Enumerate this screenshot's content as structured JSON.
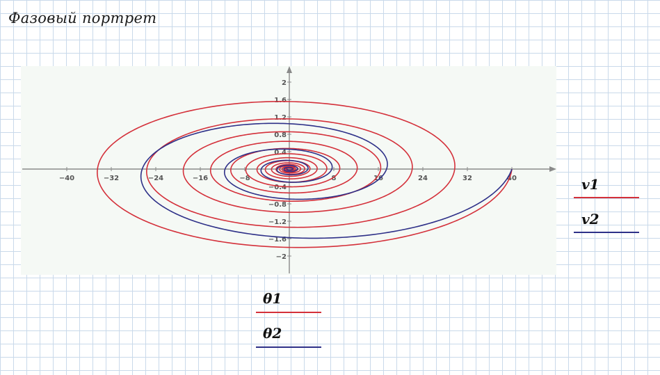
{
  "title": "Фазовый портрет",
  "chart_data": {
    "type": "line",
    "title": "Фазовый портрет",
    "xlabel": "",
    "ylabel": "",
    "xlim": [
      -48,
      47
    ],
    "ylim": [
      -2.4,
      2.4
    ],
    "x_ticks": [
      -40,
      -32,
      -24,
      -16,
      -8,
      0,
      8,
      16,
      24,
      32,
      40
    ],
    "x_tick_labels": [
      "−40",
      "−32",
      "−24",
      "−16",
      "−8",
      "",
      "8",
      "16",
      "24",
      "32",
      "40"
    ],
    "y_ticks": [
      2,
      1.6,
      1.2,
      0.8,
      0.4,
      -0.4,
      -0.8,
      -1.2,
      -1.6,
      -2
    ],
    "y_tick_labels": [
      "2",
      "1.6",
      "1.2",
      "0.8",
      "0.4",
      "−0.4",
      "−0.8",
      "−1.2",
      "−1.6",
      "−2"
    ],
    "grid": false,
    "series": [
      {
        "name": "v1",
        "x_label": "θ1",
        "color": "#d4303a",
        "description_values": {
          "start": [
            40,
            0
          ],
          "decay_per_turn": 0.862,
          "ellipse_ratio_y_over_x": 0.0485
        },
        "x": [
          40,
          0,
          -34.5,
          0,
          29.7,
          0,
          -25.6,
          0,
          22.1,
          0,
          -19.0,
          0,
          16.4,
          0,
          -14.1,
          0,
          12.2,
          0,
          -10.5,
          0,
          9.0,
          0,
          -7.8,
          0,
          6.7,
          0,
          -5.8,
          0,
          5.0,
          0,
          -4.3,
          0,
          3.7,
          0,
          -3.2,
          0,
          2.7,
          0,
          -2.4,
          0,
          2.0
        ],
        "y": [
          0,
          -1.8,
          0,
          1.56,
          0,
          -1.34,
          0,
          1.16,
          0,
          -1.0,
          0,
          0.86,
          0,
          -0.74,
          0,
          0.64,
          0,
          -0.55,
          0,
          0.47,
          0,
          -0.41,
          0,
          0.35,
          0,
          -0.3,
          0,
          0.26,
          0,
          -0.23,
          0,
          0.19,
          0,
          -0.17,
          0,
          0.14,
          0,
          -0.12,
          0,
          0.11,
          0
        ]
      },
      {
        "name": "v2",
        "x_label": "θ2",
        "color": "#2e3088",
        "description_values": {
          "start": [
            40,
            0
          ],
          "decay_per_turn": 0.661,
          "ellipse_ratio_y_over_x": 0.0485
        },
        "x": [
          40,
          0,
          -26.4,
          0,
          17.5,
          0,
          -11.6,
          0,
          7.6,
          0,
          -5.0,
          0,
          3.3,
          0,
          -2.2,
          0,
          1.5
        ],
        "y": [
          0,
          -1.71,
          0,
          1.13,
          0,
          -0.75,
          0,
          0.49,
          0,
          -0.33,
          0,
          0.22,
          0,
          -0.14,
          0,
          0.1,
          0
        ]
      }
    ],
    "legend": {
      "y_entries": [
        "v1",
        "v2"
      ],
      "x_entries": [
        "θ1",
        "θ2"
      ],
      "y_placement": "right",
      "x_placement": "bottom"
    }
  }
}
